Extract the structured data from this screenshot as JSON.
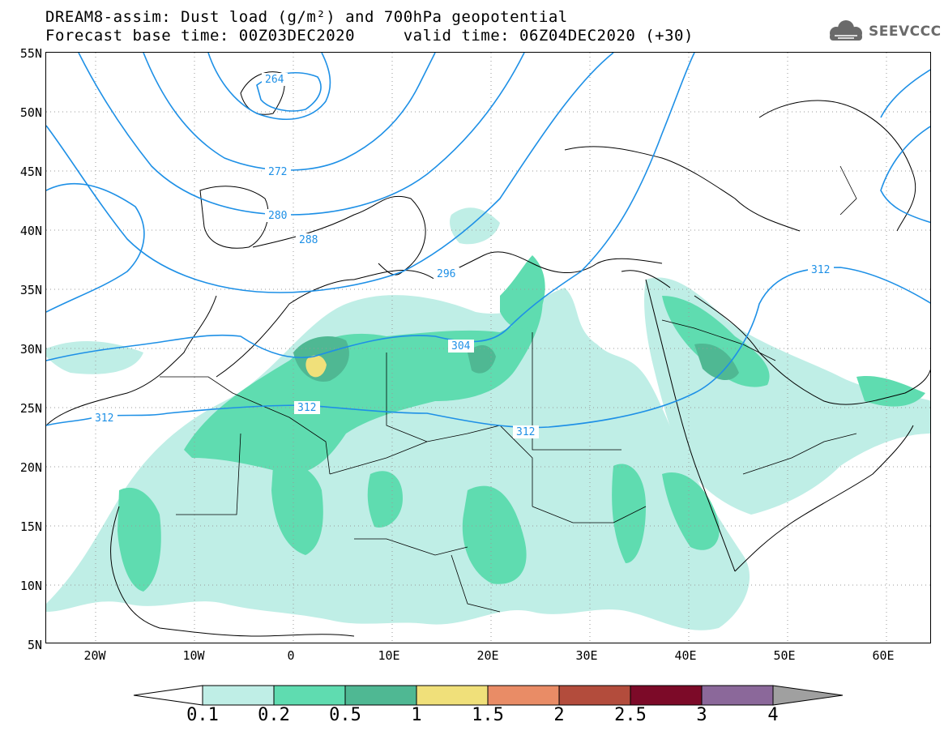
{
  "header": {
    "title_line1": "DREAM8-assim: Dust load (g/m²) and 700hPa geopotential",
    "title_line2": "Forecast base time: 00Z03DEC2020     valid time: 06Z04DEC2020 (+30)",
    "logo_text": "SEEVCCC"
  },
  "map": {
    "lat_labels": [
      "55N",
      "50N",
      "45N",
      "40N",
      "35N",
      "30N",
      "25N",
      "20N",
      "15N",
      "10N",
      "5N"
    ],
    "lon_labels": [
      "20W",
      "10W",
      "0",
      "10E",
      "20E",
      "30E",
      "40E",
      "50E",
      "60E"
    ],
    "contour_labels": [
      "264",
      "272",
      "280",
      "288",
      "296",
      "304",
      "312",
      "312",
      "312",
      "312"
    ],
    "geopotential_color": "#1e90e6",
    "dust_colors": [
      "#bfeee6",
      "#5fdcb0",
      "#4fb893",
      "#f0e07a",
      "#e98c66",
      "#b34c3c",
      "#7c0a28",
      "#8b689a",
      "#a0a0a0"
    ]
  },
  "colorbar": {
    "labels": [
      "0.1",
      "0.2",
      "0.5",
      "1",
      "1.5",
      "2",
      "2.5",
      "3",
      "4"
    ],
    "colors": [
      "#bfeee6",
      "#5fdcb0",
      "#4fb893",
      "#f0e07a",
      "#e98c66",
      "#b34c3c",
      "#7c0a28",
      "#8b689a"
    ],
    "low_extend_color": "#ffffff",
    "high_extend_color": "#a0a0a0"
  }
}
